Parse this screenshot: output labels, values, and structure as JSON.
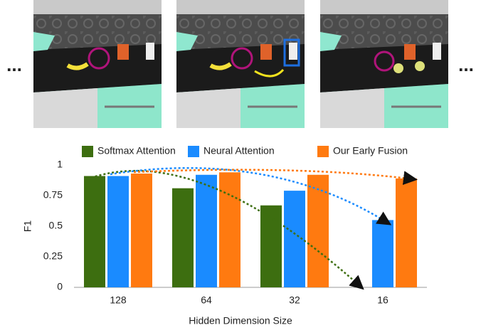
{
  "chart_data": {
    "type": "bar",
    "annotations": [
      "...",
      "..."
    ],
    "categories": [
      "128",
      "64",
      "32",
      "16"
    ],
    "series": [
      {
        "name": "Softmax Attention",
        "color": "#3d6e10",
        "values": [
          0.91,
          0.81,
          0.67,
          0
        ]
      },
      {
        "name": "Neural Attention",
        "color": "#1a8bff",
        "values": [
          0.91,
          0.92,
          0.79,
          0.55
        ]
      },
      {
        "name": "Our Early Fusion",
        "color": "#ff7a10",
        "values": [
          0.93,
          0.94,
          0.92,
          0.89
        ]
      }
    ],
    "y_label": "F1",
    "x_label": "Hidden Dimension Size",
    "ylim": [
      0,
      1
    ],
    "yticks": [
      0,
      0.25,
      0.5,
      0.75,
      1
    ],
    "grid": false,
    "legend": "top"
  }
}
